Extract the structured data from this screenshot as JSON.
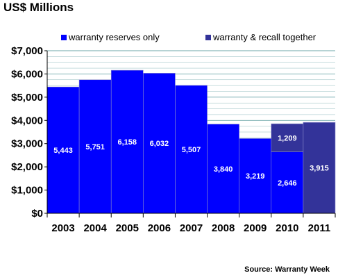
{
  "chart_data": {
    "type": "bar",
    "title": "US$ Millions",
    "source": "Source: Warranty Week",
    "categories": [
      "2003",
      "2004",
      "2005",
      "2006",
      "2007",
      "2008",
      "2009",
      "2010",
      "2011"
    ],
    "series": [
      {
        "name": "warranty reserves only",
        "color": "#0000ff",
        "values": [
          5443,
          5751,
          6158,
          6032,
          5507,
          3840,
          3219,
          2646,
          null
        ],
        "labels": [
          "5,443",
          "5,751",
          "6,158",
          "6,032",
          "5,507",
          "3,840",
          "3,219",
          "2,646",
          ""
        ]
      },
      {
        "name": "warranty & recall together",
        "color": "#333399",
        "values": [
          null,
          null,
          null,
          null,
          null,
          null,
          null,
          1209,
          3915
        ],
        "labels": [
          "",
          "",
          "",
          "",
          "",
          "",
          "",
          "1,209",
          "3,915"
        ]
      }
    ],
    "stacked": true,
    "ylim": [
      0,
      7000
    ],
    "yticks": [
      0,
      1000,
      2000,
      3000,
      4000,
      5000,
      6000,
      7000
    ],
    "ytick_labels": [
      "$0",
      "$1,000",
      "$2,000",
      "$3,000",
      "$4,000",
      "$5,000",
      "$6,000",
      "$7,000"
    ],
    "grid": true,
    "minor_gridlines": true,
    "legend_position": "top",
    "background_color": "#ffffff",
    "gridline_color": "#5f9ea0",
    "axis_color": "#000000"
  }
}
